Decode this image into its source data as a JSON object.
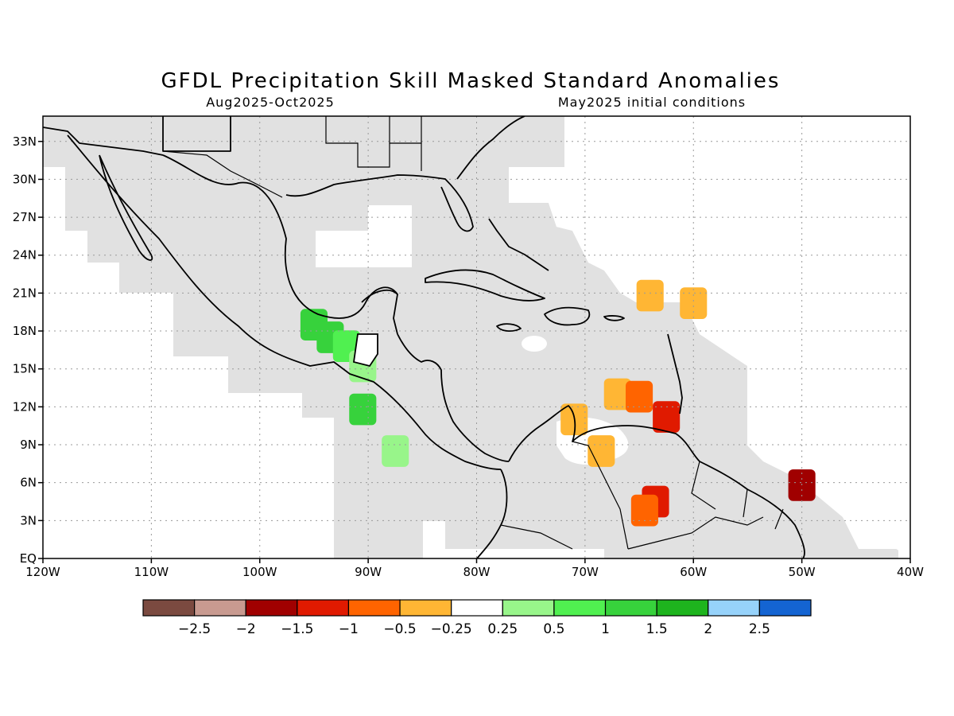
{
  "title": "GFDL Precipitation Skill Masked Standard Anomalies",
  "period": "Aug2025-Oct2025",
  "initial_conditions": "May2025 initial conditions",
  "map": {
    "lon_range": [
      -120,
      -40
    ],
    "lat_range": [
      0,
      35
    ],
    "lon_ticks": [
      {
        "value": -120,
        "label": "120W"
      },
      {
        "value": -110,
        "label": "110W"
      },
      {
        "value": -100,
        "label": "100W"
      },
      {
        "value": -90,
        "label": "90W"
      },
      {
        "value": -80,
        "label": "80W"
      },
      {
        "value": -70,
        "label": "70W"
      },
      {
        "value": -60,
        "label": "60W"
      },
      {
        "value": -50,
        "label": "50W"
      },
      {
        "value": -40,
        "label": "40W"
      }
    ],
    "lat_ticks": [
      {
        "value": 0,
        "label": "EQ"
      },
      {
        "value": 3,
        "label": "3N"
      },
      {
        "value": 6,
        "label": "6N"
      },
      {
        "value": 9,
        "label": "9N"
      },
      {
        "value": 12,
        "label": "12N"
      },
      {
        "value": 15,
        "label": "15N"
      },
      {
        "value": 18,
        "label": "18N"
      },
      {
        "value": 21,
        "label": "21N"
      },
      {
        "value": 24,
        "label": "24N"
      },
      {
        "value": 27,
        "label": "27N"
      },
      {
        "value": 30,
        "label": "30N"
      },
      {
        "value": 33,
        "label": "33N"
      }
    ],
    "mask_color": "#e1e1e1",
    "grid": true
  },
  "colorbar": {
    "colors": [
      "#7b4a40",
      "#c89a90",
      "#a00000",
      "#e01a00",
      "#ff6400",
      "#ffb634",
      "#ffffff",
      "#98f58a",
      "#50f050",
      "#37d23c",
      "#1eb41e",
      "#96d2fa",
      "#1464d2"
    ],
    "labels": [
      "-2.5",
      "-2",
      "-1.5",
      "-1",
      "-0.5",
      "-0.25",
      "0.25",
      "0.5",
      "1",
      "1.5",
      "2",
      "2.5"
    ]
  },
  "anomaly_cells": [
    {
      "lon": -95,
      "lat": 18.5,
      "value": 1.2
    },
    {
      "lon": -93.5,
      "lat": 17.5,
      "value": 1.2
    },
    {
      "lon": -92,
      "lat": 16.8,
      "value": 0.6
    },
    {
      "lon": -90.5,
      "lat": 15.2,
      "value": 0.3
    },
    {
      "lon": -90.5,
      "lat": 11.8,
      "value": 1.2
    },
    {
      "lon": -87.5,
      "lat": 8.5,
      "value": 0.3
    },
    {
      "lon": -67,
      "lat": 13,
      "value": -0.3
    },
    {
      "lon": -65,
      "lat": 12.8,
      "value": -0.7
    },
    {
      "lon": -62.5,
      "lat": 11.2,
      "value": -1.2
    },
    {
      "lon": -71,
      "lat": 11,
      "value": -0.3
    },
    {
      "lon": -63.5,
      "lat": 4.5,
      "value": -1.2
    },
    {
      "lon": -64.5,
      "lat": 3.8,
      "value": -0.7
    },
    {
      "lon": -50,
      "lat": 5.8,
      "value": -1.7
    },
    {
      "lon": -64,
      "lat": 20.8,
      "value": -0.3
    },
    {
      "lon": -60,
      "lat": 20.2,
      "value": -0.3
    },
    {
      "lon": -68.5,
      "lat": 8.5,
      "value": -0.3
    }
  ]
}
